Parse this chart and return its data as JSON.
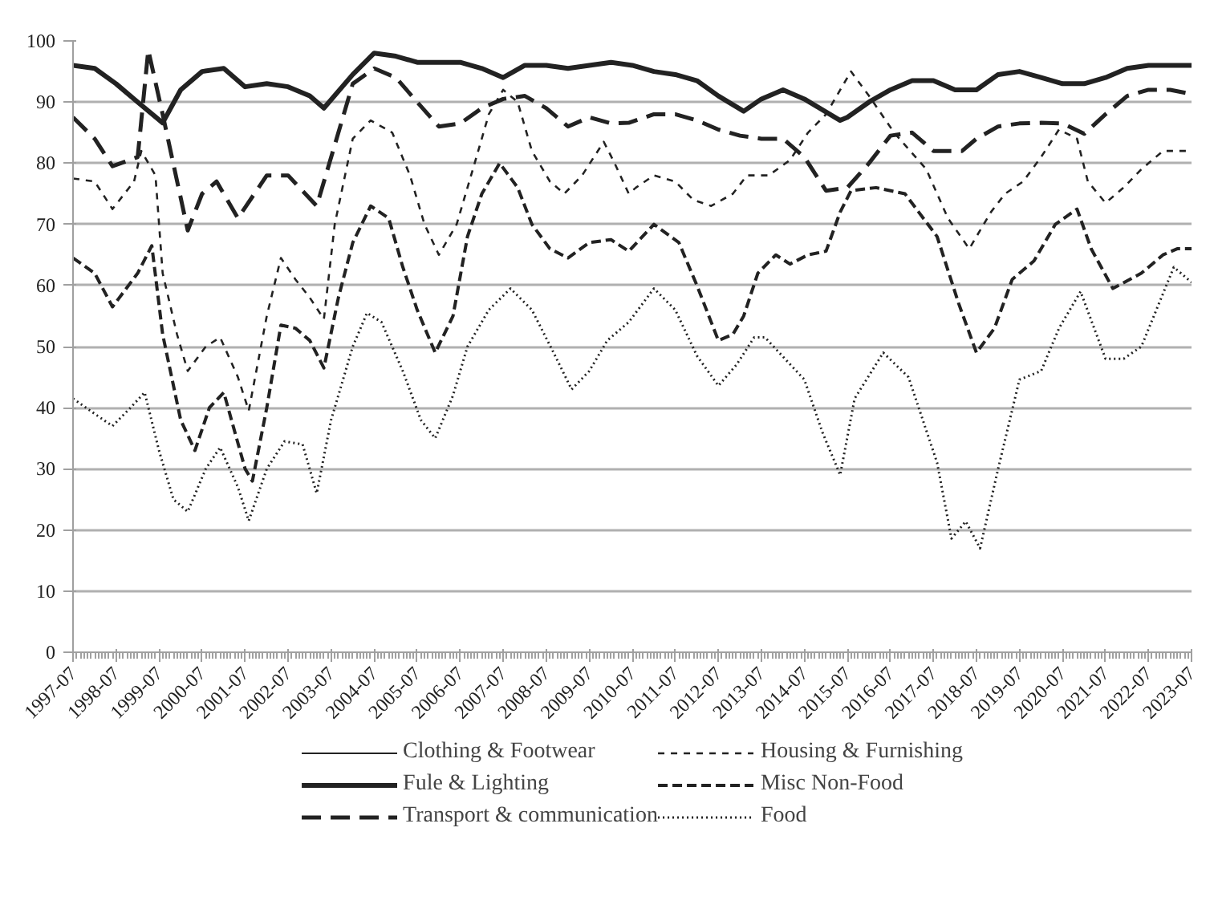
{
  "chart_data": {
    "type": "line",
    "ylim": [
      0,
      100
    ],
    "yticks": [
      0,
      10,
      20,
      30,
      40,
      50,
      60,
      70,
      80,
      90,
      100
    ],
    "xlim": [
      "1997-07",
      "2023-07"
    ],
    "xticks": [
      "1997-07",
      "1998-07",
      "1999-07",
      "2000-07",
      "2001-07",
      "2002-07",
      "2003-07",
      "2004-07",
      "2005-07",
      "2006-07",
      "2007-07",
      "2008-07",
      "2009-07",
      "2010-07",
      "2011-07",
      "2012-07",
      "2013-07",
      "2014-07",
      "2015-07",
      "2016-07",
      "2017-07",
      "2018-07",
      "2019-07",
      "2020-07",
      "2021-07",
      "2022-07",
      "2023-07"
    ],
    "grid": "y",
    "legend": "bottom",
    "series": [
      {
        "name": "Clothing & Footwear",
        "color": "#222222",
        "line_style": "solid"
      },
      {
        "name": "Fule & Lighting",
        "color": "#222222",
        "line_style": "solid",
        "x": [
          "1997-07",
          "1998-01",
          "1998-07",
          "1999-01",
          "1999-08",
          "2000-01",
          "2000-07",
          "2001-01",
          "2001-07",
          "2002-01",
          "2002-07",
          "2003-01",
          "2003-05",
          "2004-01",
          "2004-07",
          "2005-01",
          "2005-07",
          "2006-01",
          "2006-07",
          "2007-01",
          "2007-07",
          "2008-01",
          "2008-07",
          "2009-01",
          "2009-07",
          "2010-01",
          "2010-07",
          "2011-01",
          "2011-07",
          "2012-01",
          "2012-07",
          "2013-02",
          "2013-07",
          "2014-01",
          "2014-07",
          "2015-05",
          "2015-07",
          "2016-01",
          "2016-07",
          "2017-01",
          "2017-07",
          "2018-01",
          "2018-07",
          "2019-01",
          "2019-07",
          "2020-01",
          "2020-07",
          "2021-01",
          "2021-07",
          "2022-01",
          "2022-07",
          "2023-01",
          "2023-07"
        ],
        "values": [
          96,
          95.5,
          93,
          90,
          86.6,
          92,
          95,
          95.5,
          92.5,
          93,
          92.5,
          91,
          89,
          94.5,
          98,
          97.5,
          96.5,
          96.5,
          96.5,
          95.5,
          94,
          96,
          96,
          95.5,
          96,
          96.5,
          96,
          95,
          94.5,
          93.5,
          91,
          88.5,
          90.5,
          92,
          90.5,
          87,
          87.5,
          90,
          92,
          93.5,
          93.5,
          92,
          92,
          94.5,
          95,
          94,
          93,
          93,
          94,
          95.5,
          96,
          96,
          96
        ]
      },
      {
        "name": "Transport & communication",
        "color": "#222222",
        "line_style": "dashed",
        "x": [
          "1997-07",
          "1998-01",
          "1998-06",
          "1999-01",
          "1999-04",
          "1999-08",
          "2000-03",
          "2000-07",
          "2000-11",
          "2001-05",
          "2002-01",
          "2002-07",
          "2003-03",
          "2003-09",
          "2004-01",
          "2004-07",
          "2005-01",
          "2005-07",
          "2006-01",
          "2006-07",
          "2007-01",
          "2007-07",
          "2008-01",
          "2008-07",
          "2009-01",
          "2009-07",
          "2010-01",
          "2010-06",
          "2011-01",
          "2011-07",
          "2012-01",
          "2012-07",
          "2013-01",
          "2013-07",
          "2014-01",
          "2014-07",
          "2015-01",
          "2015-07",
          "2016-01",
          "2016-07",
          "2017-01",
          "2017-07",
          "2018-03",
          "2018-07",
          "2019-01",
          "2019-07",
          "2020-01",
          "2020-07",
          "2021-01",
          "2021-07",
          "2022-01",
          "2022-07",
          "2023-01",
          "2023-07"
        ],
        "values": [
          87.5,
          84,
          79.5,
          81,
          98.5,
          88,
          69,
          75,
          77,
          71,
          78,
          78,
          73,
          85,
          93,
          95.5,
          94,
          90,
          86,
          86.5,
          89,
          90.5,
          91,
          89,
          86,
          87.5,
          86.5,
          86.6,
          88,
          88,
          87,
          85.5,
          84.5,
          84,
          84,
          81,
          75.5,
          76,
          80,
          84.5,
          85,
          82,
          82,
          84,
          86,
          86.5,
          86.6,
          86.5,
          84.8,
          88,
          91,
          92,
          92,
          91.3
        ]
      },
      {
        "name": "Housing & Furnishing",
        "color": "#222222",
        "line_style": "dashed",
        "x": [
          "1997-07",
          "1998-01",
          "1998-06",
          "1998-12",
          "1999-02",
          "1999-06",
          "1999-08",
          "1999-12",
          "2000-03",
          "2000-08",
          "2000-12",
          "2001-05",
          "2001-08",
          "2002-01",
          "2002-05",
          "2002-09",
          "2003-01",
          "2003-05",
          "2003-08",
          "2004-01",
          "2004-06",
          "2004-12",
          "2005-05",
          "2005-09",
          "2006-01",
          "2006-06",
          "2006-11",
          "2007-03",
          "2007-07",
          "2007-11",
          "2008-03",
          "2008-08",
          "2008-12",
          "2009-05",
          "2009-11",
          "2010-02",
          "2010-06",
          "2010-08",
          "2011-01",
          "2011-07",
          "2011-12",
          "2012-05",
          "2012-11",
          "2013-03",
          "2013-09",
          "2014-03",
          "2014-08",
          "2015-01",
          "2015-06",
          "2015-08",
          "2016-01",
          "2016-08",
          "2017-05",
          "2017-11",
          "2018-05",
          "2018-11",
          "2019-03",
          "2019-08",
          "2020-01",
          "2020-06",
          "2020-11",
          "2021-02",
          "2021-07",
          "2021-12",
          "2022-05",
          "2022-11",
          "2023-07"
        ],
        "values": [
          77.5,
          77,
          72.5,
          77,
          82,
          78,
          62,
          52,
          46,
          50,
          51.5,
          45,
          39.5,
          55,
          64.5,
          61,
          58,
          54.5,
          70,
          84,
          87,
          85,
          78,
          70,
          65,
          70,
          80,
          88,
          92,
          90,
          82,
          77,
          75,
          78,
          83.5,
          80,
          75,
          76,
          78,
          77,
          74,
          73,
          75,
          78,
          78,
          80.5,
          85,
          88,
          93,
          95,
          91,
          85,
          79,
          71,
          66,
          72,
          75,
          77,
          81,
          85.5,
          84,
          77,
          73.5,
          76,
          79,
          82,
          82
        ]
      },
      {
        "name": "Misc Non-Food",
        "color": "#222222",
        "line_style": "dashed",
        "x": [
          "1997-07",
          "1998-01",
          "1998-06",
          "1999-01",
          "1999-05",
          "1999-08",
          "2000-01",
          "2000-05",
          "2000-09",
          "2001-01",
          "2001-07",
          "2001-09",
          "2002-01",
          "2002-05",
          "2002-09",
          "2003-01",
          "2003-05",
          "2003-09",
          "2004-01",
          "2004-06",
          "2004-11",
          "2005-03",
          "2005-07",
          "2005-12",
          "2006-05",
          "2006-09",
          "2007-01",
          "2007-06",
          "2007-11",
          "2008-03",
          "2008-08",
          "2009-01",
          "2009-07",
          "2010-01",
          "2010-06",
          "2011-01",
          "2011-08",
          "2012-01",
          "2012-07",
          "2012-11",
          "2013-02",
          "2013-06",
          "2013-11",
          "2014-03",
          "2014-08",
          "2015-01",
          "2015-05",
          "2015-08",
          "2016-03",
          "2016-11",
          "2017-08",
          "2018-02",
          "2018-07",
          "2018-12",
          "2019-05",
          "2019-11",
          "2020-05",
          "2020-11",
          "2021-03",
          "2021-09",
          "2022-05",
          "2022-11",
          "2023-03",
          "2023-07"
        ],
        "values": [
          64.5,
          62,
          56.5,
          62,
          66.5,
          52,
          38,
          33,
          40,
          42.5,
          30,
          28,
          40,
          53.5,
          53,
          51,
          46.5,
          58,
          67,
          73,
          71,
          63,
          56,
          49,
          55,
          68,
          75,
          80,
          76,
          70,
          66,
          64.5,
          67,
          67.5,
          65.6,
          70,
          67,
          60,
          51,
          52,
          55,
          62,
          65,
          63.5,
          65,
          65.6,
          72,
          75.5,
          76,
          75,
          68,
          57,
          49,
          53,
          61,
          64,
          70,
          72.5,
          66,
          59.5,
          62,
          65,
          66,
          66
        ]
      },
      {
        "name": "Food",
        "color": "#222222",
        "line_style": "dotted",
        "x": [
          "1997-07",
          "1998-01",
          "1998-06",
          "1998-11",
          "1999-03",
          "1999-07",
          "1999-11",
          "2000-03",
          "2000-08",
          "2000-12",
          "2001-05",
          "2001-08",
          "2002-01",
          "2002-06",
          "2002-11",
          "2003-03",
          "2003-07",
          "2004-01",
          "2004-05",
          "2004-09",
          "2005-03",
          "2005-08",
          "2005-12",
          "2006-05",
          "2006-09",
          "2007-03",
          "2007-09",
          "2008-03",
          "2008-09",
          "2009-02",
          "2009-07",
          "2009-12",
          "2010-06",
          "2011-01",
          "2011-07",
          "2012-01",
          "2012-07",
          "2012-12",
          "2013-05",
          "2013-08",
          "2014-07",
          "2014-12",
          "2015-05",
          "2015-09",
          "2016-05",
          "2016-12",
          "2017-08",
          "2017-12",
          "2018-04",
          "2018-08",
          "2019-01",
          "2019-07",
          "2020-01",
          "2020-06",
          "2020-12",
          "2021-07",
          "2021-12",
          "2022-05",
          "2023-02",
          "2023-07"
        ],
        "values": [
          41.5,
          39,
          37,
          40,
          42.5,
          33,
          25,
          23,
          30,
          33.5,
          27,
          21.5,
          30,
          34.5,
          34,
          26,
          38,
          50,
          55.5,
          54,
          46,
          38,
          35,
          42,
          50,
          56,
          59.5,
          56,
          49,
          43,
          46,
          51,
          54,
          59.5,
          56,
          48.5,
          43.6,
          47,
          51.5,
          51.5,
          44.6,
          36,
          29,
          41.5,
          49,
          45,
          31,
          18.6,
          21.4,
          17,
          30,
          44.6,
          46,
          53,
          59,
          48,
          48,
          50,
          63,
          60.5
        ]
      }
    ]
  }
}
